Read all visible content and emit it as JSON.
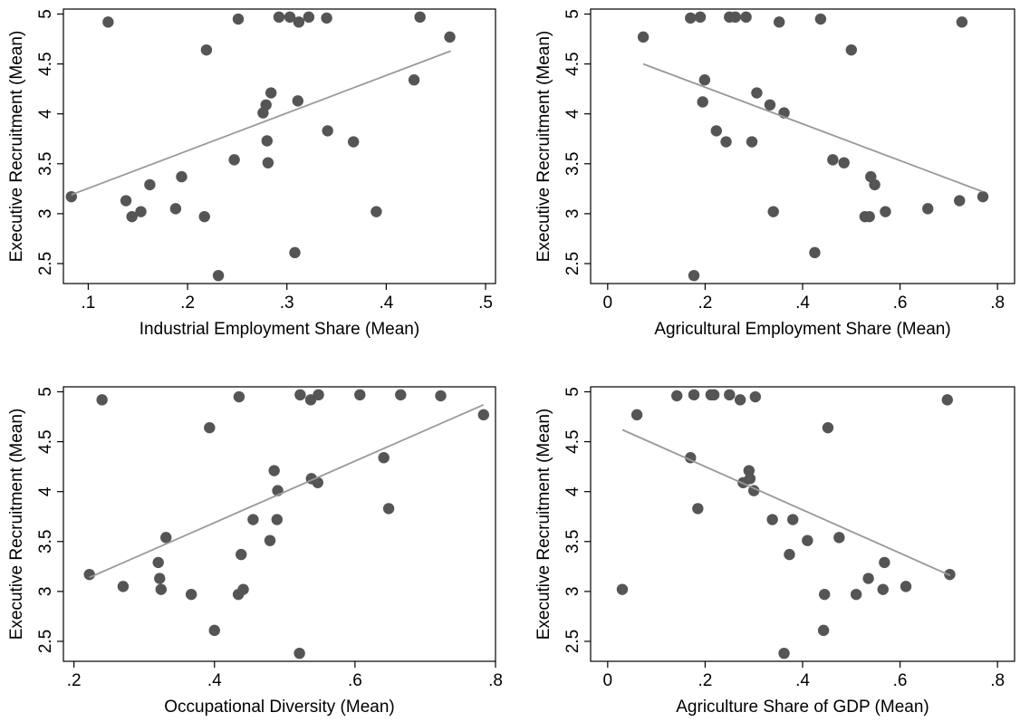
{
  "chart_data": [
    {
      "type": "scatter",
      "xlabel": "Industrial Employment Share (Mean)",
      "ylabel": "Executive Recruitment (Mean)",
      "xlim": [
        0.075,
        0.51
      ],
      "ylim": [
        2.3,
        5.05
      ],
      "xticks": [
        0.1,
        0.2,
        0.3,
        0.4,
        0.5
      ],
      "xtick_labels": [
        ".1",
        ".2",
        ".3",
        ".4",
        ".5"
      ],
      "yticks": [
        2.5,
        3,
        3.5,
        4,
        4.5,
        5
      ],
      "ytick_labels": [
        "2.5",
        "3",
        "3.5",
        "4",
        "4.5",
        "5"
      ],
      "fit_line": {
        "x": [
          0.083,
          0.465
        ],
        "y": [
          3.19,
          4.63
        ]
      },
      "points": [
        {
          "x": 0.083,
          "y": 3.17
        },
        {
          "x": 0.12,
          "y": 4.92
        },
        {
          "x": 0.138,
          "y": 3.13
        },
        {
          "x": 0.144,
          "y": 2.97
        },
        {
          "x": 0.153,
          "y": 3.02
        },
        {
          "x": 0.162,
          "y": 3.29
        },
        {
          "x": 0.188,
          "y": 3.05
        },
        {
          "x": 0.194,
          "y": 3.37
        },
        {
          "x": 0.217,
          "y": 2.97
        },
        {
          "x": 0.219,
          "y": 4.64
        },
        {
          "x": 0.231,
          "y": 2.38
        },
        {
          "x": 0.247,
          "y": 3.54
        },
        {
          "x": 0.251,
          "y": 4.95
        },
        {
          "x": 0.276,
          "y": 4.01
        },
        {
          "x": 0.279,
          "y": 4.09
        },
        {
          "x": 0.28,
          "y": 3.73
        },
        {
          "x": 0.281,
          "y": 3.51
        },
        {
          "x": 0.284,
          "y": 4.21
        },
        {
          "x": 0.292,
          "y": 4.97
        },
        {
          "x": 0.303,
          "y": 4.97
        },
        {
          "x": 0.308,
          "y": 2.61
        },
        {
          "x": 0.311,
          "y": 4.13
        },
        {
          "x": 0.312,
          "y": 4.92
        },
        {
          "x": 0.322,
          "y": 4.97
        },
        {
          "x": 0.34,
          "y": 4.96
        },
        {
          "x": 0.341,
          "y": 3.83
        },
        {
          "x": 0.367,
          "y": 3.72
        },
        {
          "x": 0.39,
          "y": 3.02
        },
        {
          "x": 0.428,
          "y": 4.34
        },
        {
          "x": 0.434,
          "y": 4.97
        },
        {
          "x": 0.464,
          "y": 4.77
        }
      ]
    },
    {
      "type": "scatter",
      "xlabel": "Agricultural Employment Share (Mean)",
      "ylabel": "Executive Recruitment (Mean)",
      "xlim": [
        -0.035,
        0.835
      ],
      "ylim": [
        2.3,
        5.05
      ],
      "xticks": [
        0,
        0.2,
        0.4,
        0.6,
        0.8
      ],
      "xtick_labels": [
        "0",
        ".2",
        ".4",
        ".6",
        ".8"
      ],
      "yticks": [
        2.5,
        3,
        3.5,
        4,
        4.5,
        5
      ],
      "ytick_labels": [
        "2.5",
        "3",
        "3.5",
        "4",
        "4.5",
        "5"
      ],
      "fit_line": {
        "x": [
          0.073,
          0.77
        ],
        "y": [
          4.5,
          3.22
        ]
      },
      "points": [
        {
          "x": 0.073,
          "y": 4.77
        },
        {
          "x": 0.17,
          "y": 4.96
        },
        {
          "x": 0.177,
          "y": 2.38
        },
        {
          "x": 0.19,
          "y": 4.97
        },
        {
          "x": 0.195,
          "y": 4.12
        },
        {
          "x": 0.199,
          "y": 4.34
        },
        {
          "x": 0.223,
          "y": 3.83
        },
        {
          "x": 0.243,
          "y": 3.72
        },
        {
          "x": 0.25,
          "y": 4.97
        },
        {
          "x": 0.262,
          "y": 4.97
        },
        {
          "x": 0.284,
          "y": 4.97
        },
        {
          "x": 0.296,
          "y": 3.72
        },
        {
          "x": 0.306,
          "y": 4.21
        },
        {
          "x": 0.333,
          "y": 4.09
        },
        {
          "x": 0.34,
          "y": 3.02
        },
        {
          "x": 0.352,
          "y": 4.92
        },
        {
          "x": 0.362,
          "y": 4.01
        },
        {
          "x": 0.425,
          "y": 2.61
        },
        {
          "x": 0.437,
          "y": 4.95
        },
        {
          "x": 0.462,
          "y": 3.54
        },
        {
          "x": 0.485,
          "y": 3.51
        },
        {
          "x": 0.5,
          "y": 4.64
        },
        {
          "x": 0.528,
          "y": 2.97
        },
        {
          "x": 0.537,
          "y": 2.97
        },
        {
          "x": 0.54,
          "y": 3.37
        },
        {
          "x": 0.548,
          "y": 3.29
        },
        {
          "x": 0.57,
          "y": 3.02
        },
        {
          "x": 0.657,
          "y": 3.05
        },
        {
          "x": 0.722,
          "y": 3.13
        },
        {
          "x": 0.727,
          "y": 4.92
        },
        {
          "x": 0.77,
          "y": 3.17
        }
      ]
    },
    {
      "type": "scatter",
      "xlabel": "Occupational Diversity (Mean)",
      "ylabel": "Executive Recruitment (Mean)",
      "xlim": [
        0.185,
        0.8
      ],
      "ylim": [
        2.3,
        5.05
      ],
      "xticks": [
        0.2,
        0.4,
        0.6,
        0.8
      ],
      "xtick_labels": [
        ".2",
        ".4",
        ".6",
        ".8"
      ],
      "yticks": [
        2.5,
        3,
        3.5,
        4,
        4.5,
        5
      ],
      "ytick_labels": [
        "2.5",
        "3",
        "3.5",
        "4",
        "4.5",
        "5"
      ],
      "fit_line": {
        "x": [
          0.222,
          0.783
        ],
        "y": [
          3.14,
          4.87
        ]
      },
      "points": [
        {
          "x": 0.222,
          "y": 3.17
        },
        {
          "x": 0.24,
          "y": 4.92
        },
        {
          "x": 0.27,
          "y": 3.05
        },
        {
          "x": 0.32,
          "y": 3.29
        },
        {
          "x": 0.322,
          "y": 3.13
        },
        {
          "x": 0.324,
          "y": 3.02
        },
        {
          "x": 0.331,
          "y": 3.54
        },
        {
          "x": 0.367,
          "y": 2.97
        },
        {
          "x": 0.393,
          "y": 4.64
        },
        {
          "x": 0.4,
          "y": 2.61
        },
        {
          "x": 0.434,
          "y": 2.97
        },
        {
          "x": 0.435,
          "y": 4.95
        },
        {
          "x": 0.438,
          "y": 3.37
        },
        {
          "x": 0.441,
          "y": 3.02
        },
        {
          "x": 0.455,
          "y": 3.72
        },
        {
          "x": 0.479,
          "y": 3.51
        },
        {
          "x": 0.485,
          "y": 4.21
        },
        {
          "x": 0.489,
          "y": 3.72
        },
        {
          "x": 0.49,
          "y": 4.01
        },
        {
          "x": 0.521,
          "y": 2.38
        },
        {
          "x": 0.522,
          "y": 4.97
        },
        {
          "x": 0.537,
          "y": 4.92
        },
        {
          "x": 0.538,
          "y": 4.13
        },
        {
          "x": 0.547,
          "y": 4.09
        },
        {
          "x": 0.548,
          "y": 4.97
        },
        {
          "x": 0.607,
          "y": 4.97
        },
        {
          "x": 0.641,
          "y": 4.34
        },
        {
          "x": 0.648,
          "y": 3.83
        },
        {
          "x": 0.665,
          "y": 4.97
        },
        {
          "x": 0.722,
          "y": 4.96
        },
        {
          "x": 0.783,
          "y": 4.77
        }
      ]
    },
    {
      "type": "scatter",
      "xlabel": "Agriculture Share of GDP (Mean)",
      "ylabel": "Executive Recruitment (Mean)",
      "xlim": [
        -0.035,
        0.835
      ],
      "ylim": [
        2.3,
        5.05
      ],
      "xticks": [
        0,
        0.2,
        0.4,
        0.6,
        0.8
      ],
      "xtick_labels": [
        "0",
        ".2",
        ".4",
        ".6",
        ".8"
      ],
      "yticks": [
        2.5,
        3,
        3.5,
        4,
        4.5,
        5
      ],
      "ytick_labels": [
        "2.5",
        "3",
        "3.5",
        "4",
        "4.5",
        "5"
      ],
      "fit_line": {
        "x": [
          0.03,
          0.703
        ],
        "y": [
          4.62,
          3.16
        ]
      },
      "points": [
        {
          "x": 0.03,
          "y": 3.02
        },
        {
          "x": 0.06,
          "y": 4.77
        },
        {
          "x": 0.142,
          "y": 4.96
        },
        {
          "x": 0.17,
          "y": 4.34
        },
        {
          "x": 0.177,
          "y": 4.97
        },
        {
          "x": 0.185,
          "y": 3.83
        },
        {
          "x": 0.212,
          "y": 4.97
        },
        {
          "x": 0.218,
          "y": 4.97
        },
        {
          "x": 0.25,
          "y": 4.97
        },
        {
          "x": 0.272,
          "y": 4.92
        },
        {
          "x": 0.278,
          "y": 4.09
        },
        {
          "x": 0.29,
          "y": 4.21
        },
        {
          "x": 0.292,
          "y": 4.13
        },
        {
          "x": 0.3,
          "y": 4.01
        },
        {
          "x": 0.303,
          "y": 4.95
        },
        {
          "x": 0.338,
          "y": 3.72
        },
        {
          "x": 0.362,
          "y": 2.38
        },
        {
          "x": 0.373,
          "y": 3.37
        },
        {
          "x": 0.38,
          "y": 3.72
        },
        {
          "x": 0.41,
          "y": 3.51
        },
        {
          "x": 0.443,
          "y": 2.61
        },
        {
          "x": 0.445,
          "y": 2.97
        },
        {
          "x": 0.452,
          "y": 4.64
        },
        {
          "x": 0.475,
          "y": 3.54
        },
        {
          "x": 0.51,
          "y": 2.97
        },
        {
          "x": 0.535,
          "y": 3.13
        },
        {
          "x": 0.565,
          "y": 3.02
        },
        {
          "x": 0.568,
          "y": 3.29
        },
        {
          "x": 0.612,
          "y": 3.05
        },
        {
          "x": 0.697,
          "y": 4.92
        },
        {
          "x": 0.702,
          "y": 3.17
        }
      ]
    }
  ]
}
